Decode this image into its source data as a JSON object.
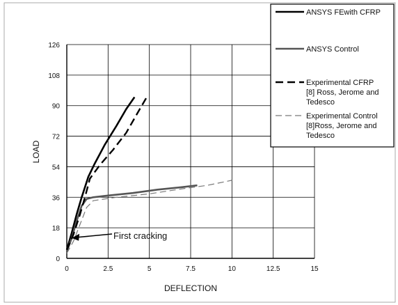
{
  "chart_data": {
    "type": "line",
    "xlabel": "DEFLECTION",
    "ylabel": "LOAD",
    "xlim": [
      0,
      15
    ],
    "ylim": [
      0,
      126
    ],
    "xticks": [
      0,
      2.5,
      5,
      7.5,
      10,
      12.5,
      15
    ],
    "yticks": [
      0,
      18,
      36,
      54,
      72,
      90,
      108,
      126
    ],
    "xtick_labels": [
      "0",
      "2.5",
      "5",
      "7.5",
      "10",
      "12.5",
      "15"
    ],
    "ytick_labels": [
      "0",
      "18",
      "36",
      "54",
      "72",
      "90",
      "108",
      "126"
    ],
    "grid": true,
    "legend_position": "top-right",
    "series": [
      {
        "name": "ANSYS FEwith CFRP",
        "style": "solid",
        "color": "#000000",
        "x": [
          0,
          0.3,
          0.6,
          0.9,
          1.3,
          1.7,
          2.3,
          3.0,
          3.6,
          4.1
        ],
        "y": [
          5,
          15,
          26,
          36,
          48,
          56,
          67,
          78,
          88,
          95
        ]
      },
      {
        "name": "ANSYS Control",
        "style": "solid",
        "color": "#555555",
        "x": [
          0,
          0.3,
          0.6,
          0.9,
          1.2,
          1.6,
          2.5,
          4.0,
          5.5,
          7.0,
          7.9
        ],
        "y": [
          4,
          12,
          22,
          31,
          35,
          36,
          37,
          38.5,
          40.5,
          42,
          43
        ]
      },
      {
        "name": "Experimental CFRP [8] Ross, Jerome and Tedesco",
        "style": "dashed",
        "color": "#000000",
        "x": [
          0,
          0.4,
          0.8,
          1.1,
          1.4,
          2.0,
          2.8,
          3.6,
          4.3,
          4.9
        ],
        "y": [
          5,
          14,
          26,
          36,
          47,
          55,
          64,
          74,
          86,
          96
        ]
      },
      {
        "name": "Experimental Control [8]Ross, Jerome and Tedesco",
        "style": "dashed-thin",
        "color": "#777777",
        "x": [
          0,
          0.4,
          0.8,
          1.2,
          1.6,
          3.0,
          5.0,
          7.0,
          8.5,
          10.0
        ],
        "y": [
          3,
          10,
          20,
          30,
          34,
          36,
          38,
          41,
          43,
          46
        ]
      }
    ],
    "annotations": [
      {
        "text": "First cracking",
        "x": 0.3,
        "y": 12
      }
    ],
    "legend_entries": [
      {
        "lines": [
          "ANSYS FEwith CFRP"
        ]
      },
      {
        "lines": [
          "ANSYS Control"
        ]
      },
      {
        "lines": [
          "Experimental CFRP",
          "[8] Ross, Jerome and",
          "Tedesco"
        ]
      },
      {
        "lines": [
          "Experimental Control",
          "[8]Ross, Jerome and",
          "Tedesco"
        ]
      }
    ]
  }
}
